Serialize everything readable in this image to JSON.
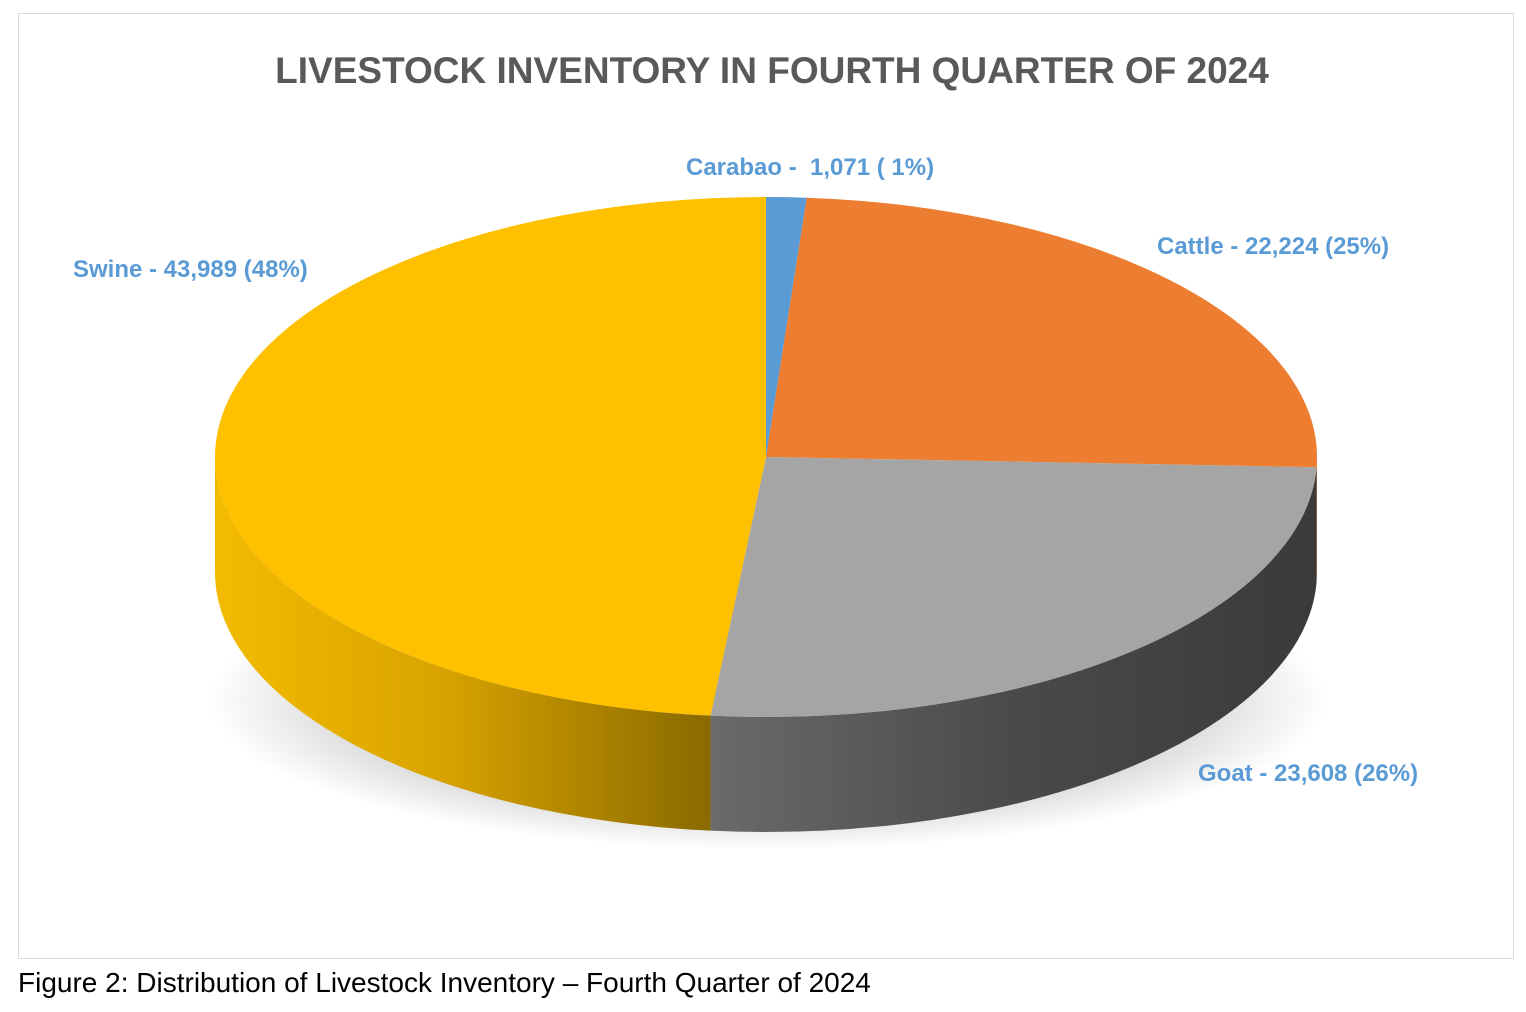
{
  "chart_data": {
    "type": "pie",
    "title": "LIVESTOCK INVENTORY IN FOURTH QUARTER OF 2024",
    "three_d": true,
    "slices": [
      {
        "label": "Carabao",
        "value": 1071,
        "percent_label": "( 1%)",
        "display": "Carabao -  1,071 ( 1%)",
        "color": "#5b9bd5"
      },
      {
        "label": "Cattle",
        "value": 22224,
        "percent_label": "(25%)",
        "display": "Cattle - 22,224 (25%)",
        "color": "#ed7d31"
      },
      {
        "label": "Goat",
        "value": 23608,
        "percent_label": "(26%)",
        "display": "Goat - 23,608 (26%)",
        "color": "#a5a5a5"
      },
      {
        "label": "Swine",
        "value": 43989,
        "percent_label": "(48%)",
        "display": "Swine - 43,989 (48%)",
        "color": "#ffc000"
      }
    ],
    "label_color": "#5b9bd5",
    "legend": "none"
  },
  "caption": "Figure 2: Distribution of Livestock Inventory – Fourth Quarter of 2024"
}
